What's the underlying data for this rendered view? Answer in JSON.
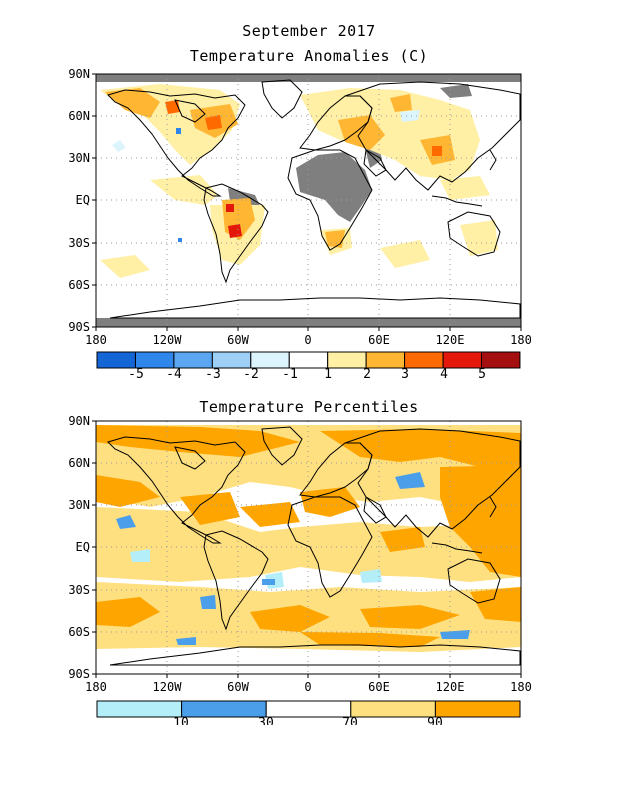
{
  "title": "September 2017",
  "panels": {
    "anomalies": {
      "subtitle": "Temperature Anomalies (C)"
    },
    "percentiles": {
      "subtitle": "Temperature Percentiles"
    }
  },
  "axes": {
    "lat_labels": [
      "90N",
      "60N",
      "30N",
      "EQ",
      "30S",
      "60S",
      "90S"
    ],
    "lon_labels": [
      "180",
      "120W",
      "60W",
      "0",
      "60E",
      "120E",
      "180"
    ]
  },
  "colors": {
    "land_missing": "#7f7f7f",
    "grid": "#9a9a9a",
    "anomaly_scale": [
      "#1465d6",
      "#2f86ea",
      "#5aa6f0",
      "#9ed0f7",
      "#dcf4fb",
      "#ffffff",
      "#fff0a6",
      "#ffb633",
      "#ff6a00",
      "#e3170a",
      "#a50f0f"
    ],
    "percentile_scale": [
      "#b4eef8",
      "#4a9eea",
      "#ffffff",
      "#ffe080",
      "#ffa500"
    ]
  },
  "legend": {
    "anomaly_ticks": [
      "-5",
      "-4",
      "-3",
      "-2",
      "-1",
      "1",
      "2",
      "3",
      "4",
      "5"
    ],
    "percentile_ticks": [
      "10",
      "30",
      "70",
      "90"
    ]
  }
}
